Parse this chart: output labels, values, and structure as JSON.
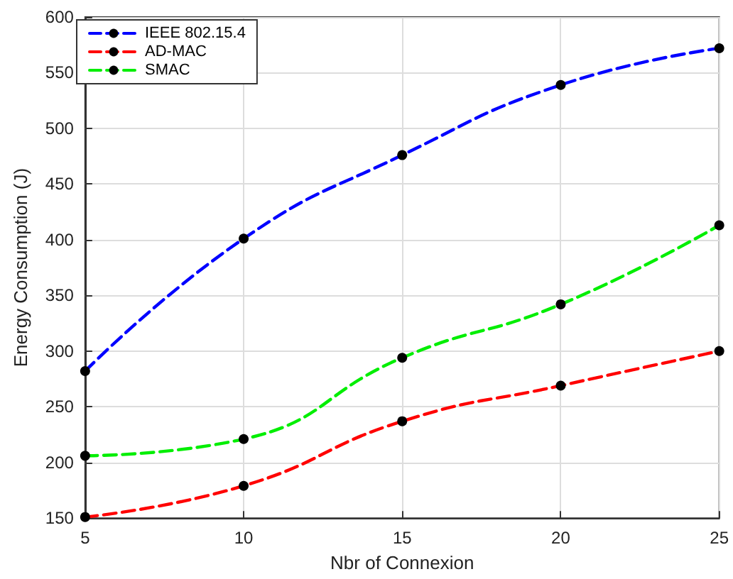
{
  "chart_data": {
    "type": "line",
    "xlabel": "Nbr of Connexion",
    "ylabel": "Energy Consumption (J)",
    "x": [
      5,
      10,
      15,
      20,
      25
    ],
    "series": [
      {
        "name": "IEEE 802.15.4",
        "color": "#0000ff",
        "values": [
          282,
          401,
          476,
          539,
          572
        ]
      },
      {
        "name": "AD-MAC",
        "color": "#ff0000",
        "values": [
          151,
          179,
          237,
          269,
          300
        ]
      },
      {
        "name": "SMAC",
        "color": "#00ee00",
        "values": [
          206,
          221,
          294,
          342,
          413
        ]
      }
    ],
    "xlim": [
      5,
      25
    ],
    "xticks": [
      5,
      10,
      15,
      20,
      25
    ],
    "ylim": [
      150,
      600
    ],
    "yticks": [
      150,
      200,
      250,
      300,
      350,
      400,
      450,
      500,
      550,
      600
    ],
    "grid": true,
    "legend": "top left",
    "marker": "circle",
    "line_style": "dashed"
  }
}
